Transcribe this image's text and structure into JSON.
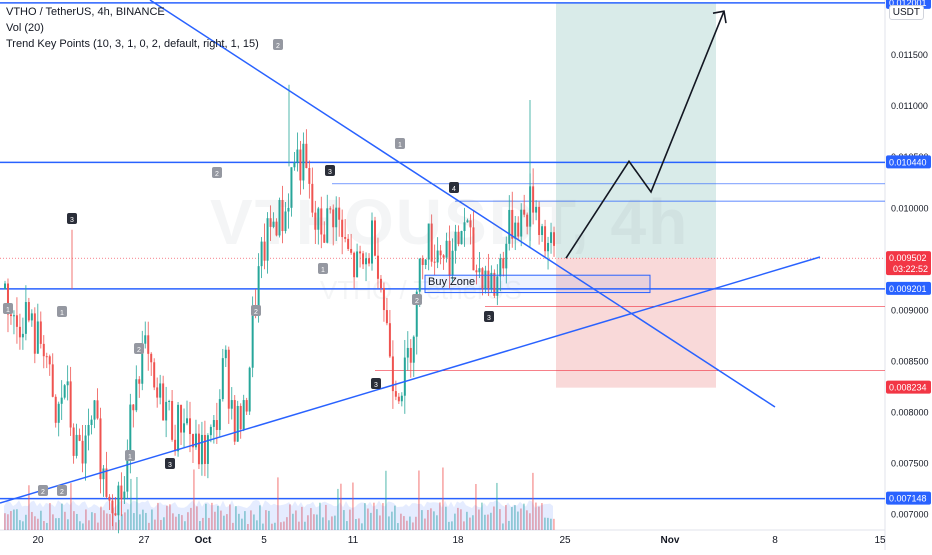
{
  "legend": {
    "title": "VTHO / TetherUS, 4h, BINANCE",
    "vol": "Vol (20)",
    "indicator": "Trend Key Points (10, 3, 1, 0, 2, default, right, 1, 15)"
  },
  "watermark": {
    "main": "VTHOUSDT, 4h",
    "sub": "VTHO / TetherUS"
  },
  "currency": "USDT",
  "colors": {
    "up": "#26a69a",
    "down": "#ef5350",
    "trendline": "#2962ff",
    "target_zone": "#cfe6e3",
    "stop_zone": "#f8d2d2",
    "price_tag": "#f23645",
    "level_tag": "#2962ff"
  },
  "chart_data": {
    "type": "candlestick",
    "symbol": "VTHO / TetherUS",
    "interval": "4h",
    "exchange": "BINANCE",
    "x_ticks": [
      "20",
      "27",
      "Oct",
      "5",
      "11",
      "18",
      "25",
      "Nov",
      "8",
      "15"
    ],
    "y_ticks": [
      "0.007000",
      "0.007500",
      "0.008000",
      "0.008500",
      "0.009000",
      "0.010000",
      "0.010500",
      "0.011000",
      "0.011500"
    ],
    "ylim": [
      0.00686,
      0.012
    ],
    "price_tags": [
      {
        "label": "0.012001",
        "value": 0.012001,
        "kind": "level"
      },
      {
        "label": "0.010440",
        "value": 0.01044,
        "kind": "level"
      },
      {
        "label": "0.009502",
        "value": 0.009502,
        "kind": "current",
        "countdown": "03:22:52"
      },
      {
        "label": "0.009201",
        "value": 0.009201,
        "kind": "level"
      },
      {
        "label": "0.008234",
        "value": 0.008234,
        "kind": "stop"
      },
      {
        "label": "0.007148",
        "value": 0.007148,
        "kind": "level"
      }
    ],
    "horizontal_levels": [
      0.012001,
      0.01044,
      0.009201,
      0.007148
    ],
    "candles_close_path": [
      [
        0.0092,
        0.0088,
        0.009,
        0.0087
      ],
      [
        0.0087,
        0.0078,
        0.0083,
        0.0076
      ],
      [
        0.0076,
        0.0079,
        0.0073,
        0.0072
      ],
      [
        0.0072,
        0.0084,
        0.0086,
        0.0081
      ],
      [
        0.0081,
        0.0078,
        0.008,
        0.0076
      ],
      [
        0.0076,
        0.0078,
        0.0085,
        0.0079
      ],
      [
        0.0079,
        0.0091,
        0.0096,
        0.0099
      ],
      [
        0.0099,
        0.0105,
        0.0104,
        0.0098
      ],
      [
        0.0098,
        0.01,
        0.0096,
        0.0094
      ],
      [
        0.0094,
        0.0098,
        0.009,
        0.0083
      ],
      [
        0.0083,
        0.0089,
        0.0097,
        0.0096
      ],
      [
        0.0096,
        0.0095,
        0.0099,
        0.0094
      ],
      [
        0.0094,
        0.0092,
        0.0096,
        0.0099
      ],
      [
        0.0099,
        0.0101,
        0.0097,
        0.0095
      ]
    ],
    "key_points": [
      {
        "label": "3",
        "x": "Sep 21",
        "y": 0.00978,
        "dark": true
      },
      {
        "label": "1",
        "x": "Sep 23",
        "y": 0.00897,
        "dark": false
      },
      {
        "label": "1",
        "x": "Sep 17",
        "y": 0.00896,
        "dark": false
      },
      {
        "label": "2",
        "x": "Sep 23",
        "y": 0.00716,
        "dark": false
      },
      {
        "label": "2",
        "x": "Sep 21",
        "y": 0.00716,
        "dark": false
      },
      {
        "label": "2",
        "x": "Sep 26",
        "y": 0.00865,
        "dark": false
      },
      {
        "label": "1",
        "x": "Sep 26",
        "y": 0.00745,
        "dark": false
      },
      {
        "label": "3",
        "x": "Sep 28",
        "y": 0.0074,
        "dark": true
      },
      {
        "label": "2",
        "x": "Oct 2",
        "y": 0.01028,
        "dark": false
      },
      {
        "label": "2",
        "x": "Oct 5",
        "y": 0.01178,
        "dark": false
      },
      {
        "label": "2",
        "x": "Oct 4",
        "y": 0.00893,
        "dark": false
      },
      {
        "label": "3",
        "x": "Oct 9",
        "y": 0.01029,
        "dark": true
      },
      {
        "label": "1",
        "x": "Oct 9",
        "y": 0.00965,
        "dark": false
      },
      {
        "label": "3",
        "x": "Oct 12",
        "y": 0.0082,
        "dark": true
      },
      {
        "label": "1",
        "x": "Oct 15",
        "y": 0.0106,
        "dark": false
      },
      {
        "label": "2",
        "x": "Oct 15",
        "y": 0.0091,
        "dark": false
      },
      {
        "label": "4",
        "x": "Oct 17",
        "y": 0.01018,
        "dark": true
      },
      {
        "label": "3",
        "x": "Oct 20",
        "y": 0.00885,
        "dark": true
      }
    ],
    "annotations": {
      "buy_zone": {
        "label": "Buy Zone",
        "top": 0.009335,
        "bottom": 0.009165
      },
      "target_zone": {
        "top": 0.012001,
        "bottom": 0.009502
      },
      "stop_zone": {
        "top": 0.009502,
        "bottom": 0.008234
      },
      "projection": [
        0.009502,
        0.01045,
        0.01015,
        0.01192
      ]
    }
  }
}
